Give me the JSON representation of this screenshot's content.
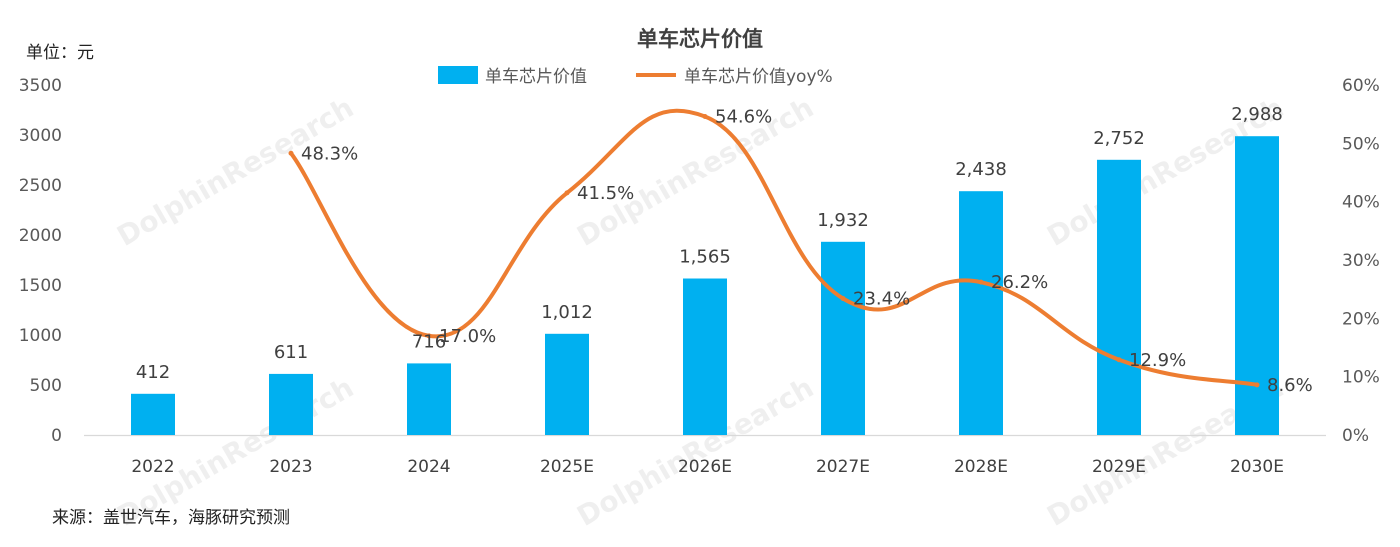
{
  "chart_data": {
    "type": "bar",
    "title": "单车芯片价值",
    "unit_label": "单位：元",
    "source": "来源：盖世汽车，海豚研究预测",
    "watermark": "DolphinResearch",
    "categories": [
      "2022",
      "2023",
      "2024",
      "2025E",
      "2026E",
      "2027E",
      "2028E",
      "2029E",
      "2030E"
    ],
    "series": [
      {
        "name": "单车芯片价值",
        "type": "bar",
        "axis": "left",
        "color": "#00b0f0",
        "values": [
          412,
          611,
          716,
          1012,
          1565,
          1932,
          2438,
          2752,
          2988
        ],
        "labels": [
          "412",
          "611",
          "716",
          "1,012",
          "1,565",
          "1,932",
          "2,438",
          "2,752",
          "2,988"
        ]
      },
      {
        "name": "单车芯片价值yoy%",
        "type": "line",
        "axis": "right",
        "color": "#ed7d31",
        "values": [
          null,
          48.3,
          17.0,
          41.5,
          54.6,
          23.4,
          26.2,
          12.9,
          8.6
        ],
        "labels": [
          "",
          "48.3%",
          "17.0%",
          "41.5%",
          "54.6%",
          "23.4%",
          "26.2%",
          "12.9%",
          "8.6%"
        ]
      }
    ],
    "ylim_left": [
      0,
      3500
    ],
    "ylim_right": [
      0,
      60
    ],
    "yticks_left": [
      "0",
      "500",
      "1000",
      "1500",
      "2000",
      "2500",
      "3000",
      "3500"
    ],
    "yticks_right": [
      "0%",
      "10%",
      "20%",
      "30%",
      "40%",
      "50%",
      "60%"
    ],
    "legend_position": "top-center",
    "grid": false
  }
}
